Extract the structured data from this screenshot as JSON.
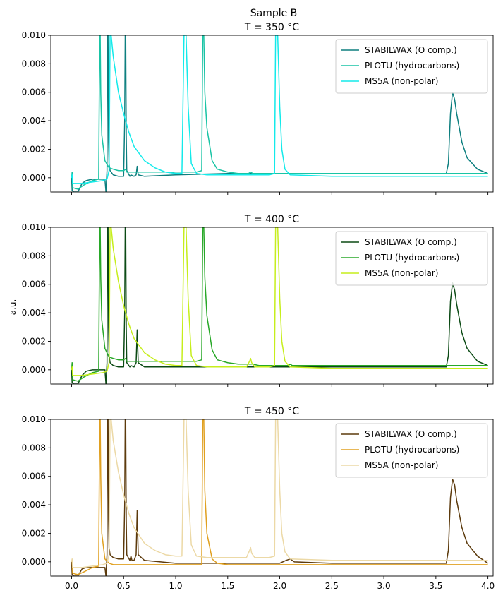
{
  "figure": {
    "suptitle": "Sample B",
    "ylabel": "a.u."
  },
  "chart_data": [
    {
      "type": "line",
      "title": "T = 350 °C",
      "xlim": [
        -0.2,
        4.05
      ],
      "ylim": [
        -0.001,
        0.01
      ],
      "xticks": [
        0.0,
        0.5,
        1.0,
        1.5,
        2.0,
        2.5,
        3.0,
        3.5,
        4.0
      ],
      "yticks": [
        0.0,
        0.002,
        0.004,
        0.006,
        0.008,
        0.01
      ],
      "show_xtick_labels": false,
      "legend_position": "upper-right",
      "series": [
        {
          "name": "STABILWAX (O comp.)",
          "color": "#0d7f7f",
          "x": [
            0.0,
            0.005,
            0.02,
            0.06,
            0.1,
            0.14,
            0.2,
            0.26,
            0.3,
            0.32,
            0.33,
            0.34,
            0.345,
            0.35,
            0.355,
            0.36,
            0.37,
            0.4,
            0.45,
            0.5,
            0.51,
            0.515,
            0.52,
            0.525,
            0.53,
            0.56,
            0.57,
            0.6,
            0.62,
            0.63,
            0.64,
            0.7,
            1.0,
            1.5,
            2.0,
            2.5,
            3.0,
            3.5,
            3.6,
            3.62,
            3.64,
            3.66,
            3.68,
            3.7,
            3.75,
            3.8,
            3.9,
            4.0
          ],
          "y": [
            0.0,
            -0.0009,
            -0.001,
            -0.001,
            -0.0004,
            -0.0002,
            -0.0001,
            -0.0001,
            -0.0001,
            -0.0001,
            -0.001,
            0.0005,
            0.01,
            0.01,
            0.0025,
            0.001,
            0.0005,
            0.0002,
            0.0001,
            0.0001,
            0.004,
            0.01,
            0.01,
            0.003,
            0.0005,
            0.0001,
            0.0002,
            0.0001,
            0.0002,
            0.0008,
            0.0002,
            0.0001,
            0.0002,
            0.0003,
            0.0003,
            0.0003,
            0.0003,
            0.0003,
            0.0003,
            0.001,
            0.0045,
            0.006,
            0.0055,
            0.0045,
            0.0025,
            0.0014,
            0.0006,
            0.0003
          ]
        },
        {
          "name": "PLOTU (hydrocarbons)",
          "color": "#19c4a5",
          "x": [
            0.0,
            0.005,
            0.01,
            0.06,
            0.12,
            0.2,
            0.26,
            0.27,
            0.275,
            0.28,
            0.29,
            0.32,
            0.36,
            0.4,
            0.45,
            0.5,
            0.52,
            0.53,
            0.54,
            0.6,
            0.8,
            1.0,
            1.2,
            1.25,
            1.26,
            1.27,
            1.28,
            1.3,
            1.35,
            1.4,
            1.5,
            1.6,
            1.7,
            1.72,
            1.74,
            1.8,
            2.0,
            2.5,
            3.0,
            3.5,
            4.0
          ],
          "y": [
            0.0,
            0.0004,
            -0.0007,
            -0.0008,
            -0.0005,
            -0.0002,
            -0.0001,
            0.01,
            0.01,
            0.006,
            0.003,
            0.0012,
            0.0007,
            0.0006,
            0.0005,
            0.0005,
            0.0006,
            0.0004,
            0.0004,
            0.0004,
            0.0004,
            0.0004,
            0.0004,
            0.0005,
            0.01,
            0.01,
            0.006,
            0.0035,
            0.0012,
            0.0006,
            0.0004,
            0.0003,
            0.0003,
            0.0004,
            0.0003,
            0.0003,
            0.0003,
            0.0003,
            0.0003,
            0.0003,
            0.0003
          ]
        },
        {
          "name": "MS5A (non-polar)",
          "color": "#13eaea",
          "x": [
            0.0,
            0.005,
            0.01,
            0.1,
            0.2,
            0.3,
            0.34,
            0.36,
            0.37,
            0.38,
            0.4,
            0.45,
            0.5,
            0.55,
            0.6,
            0.7,
            0.8,
            0.9,
            1.0,
            1.06,
            1.08,
            1.09,
            1.1,
            1.12,
            1.15,
            1.2,
            1.3,
            1.5,
            1.7,
            1.9,
            1.95,
            1.96,
            1.97,
            1.98,
            2.0,
            2.02,
            2.05,
            2.1,
            2.5,
            3.0,
            4.0
          ],
          "y": [
            0.0,
            0.0002,
            -0.0004,
            -0.0004,
            -0.0003,
            -0.0002,
            -0.0001,
            0.0005,
            0.01,
            0.01,
            0.0085,
            0.006,
            0.0045,
            0.0032,
            0.0022,
            0.0012,
            0.0007,
            0.0004,
            0.0003,
            0.0003,
            0.01,
            0.01,
            0.01,
            0.005,
            0.001,
            0.0003,
            0.0002,
            0.0002,
            0.0002,
            0.0002,
            0.0003,
            0.01,
            0.01,
            0.01,
            0.005,
            0.002,
            0.0006,
            0.0002,
            0.0001,
            0.0001,
            0.0001
          ]
        }
      ]
    },
    {
      "type": "line",
      "title": "T = 400 °C",
      "xlim": [
        -0.2,
        4.05
      ],
      "ylim": [
        -0.001,
        0.01
      ],
      "xticks": [
        0.0,
        0.5,
        1.0,
        1.5,
        2.0,
        2.5,
        3.0,
        3.5,
        4.0
      ],
      "yticks": [
        0.0,
        0.002,
        0.004,
        0.006,
        0.008,
        0.01
      ],
      "show_xtick_labels": false,
      "legend_position": "upper-right",
      "series": [
        {
          "name": "STABILWAX (O comp.)",
          "color": "#0b4a14",
          "x": [
            0.0,
            0.005,
            0.02,
            0.06,
            0.1,
            0.14,
            0.2,
            0.26,
            0.3,
            0.32,
            0.33,
            0.34,
            0.345,
            0.35,
            0.355,
            0.36,
            0.37,
            0.4,
            0.45,
            0.5,
            0.51,
            0.515,
            0.52,
            0.525,
            0.53,
            0.56,
            0.57,
            0.6,
            0.62,
            0.63,
            0.64,
            0.7,
            1.0,
            1.5,
            2.0,
            2.5,
            3.0,
            3.5,
            3.6,
            3.62,
            3.64,
            3.66,
            3.68,
            3.7,
            3.75,
            3.8,
            3.9,
            4.0
          ],
          "y": [
            0.0,
            -0.0009,
            -0.001,
            -0.001,
            -0.0004,
            -0.0001,
            0.0,
            0.0,
            0.0,
            0.0,
            -0.001,
            0.0005,
            0.01,
            0.01,
            0.003,
            0.001,
            0.0005,
            0.0003,
            0.0002,
            0.0002,
            0.004,
            0.01,
            0.01,
            0.003,
            0.0005,
            0.0002,
            0.0003,
            0.0002,
            0.0005,
            0.0028,
            0.0005,
            0.0002,
            0.0002,
            0.0002,
            0.0002,
            0.0002,
            0.0002,
            0.0002,
            0.0002,
            0.001,
            0.0048,
            0.0061,
            0.0056,
            0.0046,
            0.0026,
            0.0015,
            0.0006,
            0.0003
          ]
        },
        {
          "name": "PLOTU (hydrocarbons)",
          "color": "#28a828",
          "x": [
            0.0,
            0.005,
            0.01,
            0.06,
            0.12,
            0.2,
            0.26,
            0.27,
            0.275,
            0.28,
            0.29,
            0.32,
            0.36,
            0.4,
            0.45,
            0.5,
            0.52,
            0.53,
            0.54,
            0.6,
            0.8,
            1.0,
            1.2,
            1.25,
            1.26,
            1.27,
            1.28,
            1.3,
            1.35,
            1.4,
            1.5,
            1.6,
            1.7,
            1.72,
            1.74,
            1.8,
            2.0,
            2.08,
            2.1,
            2.12,
            2.2,
            2.5,
            3.0,
            3.5,
            4.0
          ],
          "y": [
            0.0,
            0.0005,
            -0.0007,
            -0.0008,
            -0.0005,
            -0.0002,
            -0.0001,
            0.01,
            0.01,
            0.0065,
            0.0035,
            0.0015,
            0.0009,
            0.0008,
            0.0007,
            0.0007,
            0.0008,
            0.0006,
            0.0006,
            0.0006,
            0.0006,
            0.0006,
            0.0006,
            0.0007,
            0.01,
            0.01,
            0.0065,
            0.0038,
            0.0014,
            0.0007,
            0.0005,
            0.0004,
            0.0004,
            0.0004,
            0.0004,
            0.0003,
            0.0003,
            0.0003,
            0.0004,
            0.0003,
            0.0003,
            0.0003,
            0.0003,
            0.0003,
            0.0003
          ]
        },
        {
          "name": "MS5A (non-polar)",
          "color": "#c6ee1c",
          "x": [
            0.0,
            0.005,
            0.01,
            0.1,
            0.2,
            0.3,
            0.34,
            0.36,
            0.37,
            0.38,
            0.4,
            0.45,
            0.5,
            0.55,
            0.6,
            0.7,
            0.8,
            0.9,
            1.0,
            1.06,
            1.08,
            1.09,
            1.1,
            1.12,
            1.15,
            1.2,
            1.3,
            1.5,
            1.68,
            1.71,
            1.72,
            1.73,
            1.76,
            1.9,
            1.95,
            1.96,
            1.97,
            1.98,
            2.0,
            2.02,
            2.05,
            2.1,
            2.5,
            3.0,
            4.0
          ],
          "y": [
            0.0,
            0.0002,
            -0.0004,
            -0.0004,
            -0.0003,
            -0.0002,
            -0.0001,
            0.0005,
            0.01,
            0.01,
            0.0085,
            0.0062,
            0.0045,
            0.0032,
            0.0022,
            0.0012,
            0.0007,
            0.0004,
            0.0003,
            0.0003,
            0.01,
            0.01,
            0.01,
            0.005,
            0.001,
            0.0003,
            0.0002,
            0.0002,
            0.0002,
            0.0006,
            0.0008,
            0.0005,
            0.0002,
            0.0002,
            0.0003,
            0.01,
            0.01,
            0.01,
            0.005,
            0.002,
            0.0006,
            0.0002,
            0.0001,
            0.0001,
            0.0001
          ]
        }
      ]
    },
    {
      "type": "line",
      "title": "T = 450 °C",
      "xlim": [
        -0.2,
        4.05
      ],
      "ylim": [
        -0.001,
        0.01
      ],
      "xticks": [
        0.0,
        0.5,
        1.0,
        1.5,
        2.0,
        2.5,
        3.0,
        3.5,
        4.0
      ],
      "xtick_labels": [
        "0.0",
        "0.5",
        "1.0",
        "1.5",
        "2.0",
        "2.5",
        "3.0",
        "3.5",
        "4.0"
      ],
      "yticks": [
        0.0,
        0.002,
        0.004,
        0.006,
        0.008,
        0.01
      ],
      "show_xtick_labels": true,
      "legend_position": "upper-right",
      "series": [
        {
          "name": "STABILWAX (O comp.)",
          "color": "#5c3a0c",
          "x": [
            0.0,
            0.005,
            0.02,
            0.06,
            0.1,
            0.14,
            0.2,
            0.26,
            0.3,
            0.32,
            0.33,
            0.34,
            0.345,
            0.35,
            0.355,
            0.36,
            0.37,
            0.4,
            0.45,
            0.5,
            0.51,
            0.515,
            0.52,
            0.525,
            0.53,
            0.56,
            0.57,
            0.58,
            0.6,
            0.62,
            0.63,
            0.64,
            0.7,
            1.0,
            1.5,
            2.0,
            2.06,
            2.1,
            2.14,
            2.5,
            3.0,
            3.5,
            3.6,
            3.62,
            3.64,
            3.66,
            3.68,
            3.7,
            3.75,
            3.8,
            3.9,
            4.0
          ],
          "y": [
            0.0,
            -0.0009,
            -0.001,
            -0.001,
            -0.0005,
            -0.0004,
            -0.0004,
            -0.0004,
            -0.0004,
            -0.0004,
            -0.001,
            0.0005,
            0.01,
            0.01,
            0.003,
            0.001,
            0.0005,
            0.0003,
            0.0002,
            0.0002,
            0.004,
            0.01,
            0.01,
            0.003,
            0.0005,
            0.0001,
            0.0004,
            0.0001,
            0.0001,
            0.0005,
            0.0036,
            0.0005,
            0.0001,
            -0.0001,
            -0.0001,
            -0.0001,
            0.0001,
            0.0002,
            0.0,
            -0.0001,
            -0.0001,
            -0.0001,
            -0.0001,
            0.0008,
            0.0045,
            0.0058,
            0.0054,
            0.0043,
            0.0024,
            0.0013,
            0.0004,
            -0.0001
          ]
        },
        {
          "name": "PLOTU (hydrocarbons)",
          "color": "#e0a020",
          "x": [
            0.0,
            0.005,
            0.01,
            0.06,
            0.12,
            0.2,
            0.26,
            0.27,
            0.275,
            0.28,
            0.29,
            0.32,
            0.36,
            0.4,
            0.45,
            0.5,
            0.6,
            0.8,
            1.0,
            1.2,
            1.25,
            1.26,
            1.27,
            1.28,
            1.3,
            1.35,
            1.4,
            1.5,
            2.0,
            2.5,
            3.0,
            3.5,
            4.0
          ],
          "y": [
            0.0,
            0.0001,
            -0.0008,
            -0.0009,
            -0.0007,
            -0.0004,
            -0.0003,
            0.01,
            0.01,
            0.006,
            0.002,
            0.0002,
            -0.0001,
            -0.0002,
            -0.0002,
            -0.0002,
            -0.0002,
            -0.0002,
            -0.0002,
            -0.0002,
            -0.0002,
            0.01,
            0.01,
            0.005,
            0.002,
            0.0002,
            -0.0001,
            -0.0002,
            -0.0002,
            -0.0002,
            -0.0002,
            -0.0002,
            -0.0002
          ]
        },
        {
          "name": "MS5A (non-polar)",
          "color": "#ecd9a6",
          "x": [
            0.0,
            0.005,
            0.01,
            0.1,
            0.2,
            0.3,
            0.34,
            0.36,
            0.37,
            0.38,
            0.4,
            0.45,
            0.5,
            0.55,
            0.6,
            0.7,
            0.8,
            0.9,
            1.0,
            1.06,
            1.08,
            1.09,
            1.1,
            1.12,
            1.15,
            1.2,
            1.3,
            1.5,
            1.68,
            1.71,
            1.72,
            1.73,
            1.76,
            1.9,
            1.95,
            1.96,
            1.97,
            1.98,
            2.0,
            2.02,
            2.05,
            2.1,
            2.5,
            3.0,
            4.0
          ],
          "y": [
            0.0,
            0.0002,
            -0.0004,
            -0.0004,
            -0.0003,
            -0.0002,
            -0.0001,
            0.0005,
            0.01,
            0.01,
            0.0085,
            0.0063,
            0.0047,
            0.0034,
            0.0024,
            0.0013,
            0.0008,
            0.0005,
            0.0004,
            0.0004,
            0.01,
            0.01,
            0.01,
            0.005,
            0.0012,
            0.0004,
            0.0003,
            0.0003,
            0.0003,
            0.0008,
            0.001,
            0.0006,
            0.0003,
            0.0003,
            0.0004,
            0.01,
            0.01,
            0.01,
            0.005,
            0.002,
            0.0007,
            0.0002,
            0.0001,
            0.0001,
            0.0001
          ]
        }
      ]
    }
  ]
}
